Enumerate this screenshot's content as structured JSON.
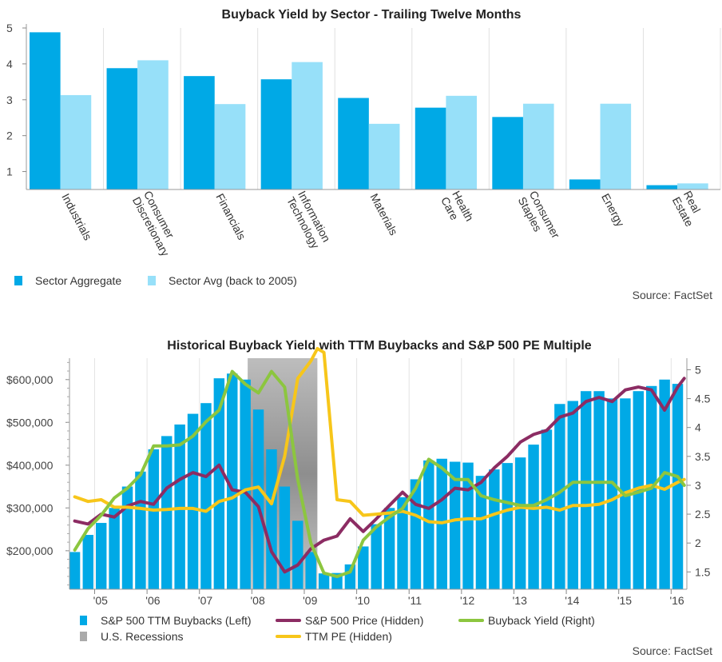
{
  "chart_data": [
    {
      "type": "bar",
      "title": "Buyback Yield by Sector - Trailing Twelve Months",
      "categories": [
        "Industrials",
        "Consumer Discretionary",
        "Financials",
        "Information Technology",
        "Materials",
        "Health Care",
        "Consumer Staples",
        "Energy",
        "Real Estate"
      ],
      "series": [
        {
          "name": "Sector Aggregate",
          "color": "#00a9e6",
          "values": [
            4.88,
            3.88,
            3.66,
            3.57,
            3.05,
            2.78,
            2.52,
            0.78,
            0.62
          ]
        },
        {
          "name": "Sector Avg (back to 2005)",
          "color": "#97e0f9",
          "values": [
            3.13,
            4.1,
            2.88,
            4.05,
            2.33,
            3.11,
            2.89,
            2.89,
            0.67
          ]
        }
      ],
      "yticks": [
        "1",
        "2",
        "3",
        "4",
        "5"
      ],
      "ylim": [
        0.5,
        5
      ],
      "legend_position": "bottom-left",
      "source": "Source: FactSet"
    },
    {
      "type": "bar-line",
      "title": "Historical Buyback Yield with TTM Buybacks and S&P 500 PE Multiple",
      "xticks": [
        "'05",
        "'06",
        "'07",
        "'08",
        "'09",
        "'10",
        "'11",
        "'12",
        "'13",
        "'14",
        "'15",
        "'16"
      ],
      "yticks_left": [
        "$200,000",
        "$300,000",
        "$400,000",
        "$500,000",
        "$600,000"
      ],
      "yticks_right": [
        "1.5",
        "2",
        "2.5",
        "3",
        "3.5",
        "4",
        "4.5",
        "5"
      ],
      "ylim_left": [
        110000,
        650000
      ],
      "ylim_right": [
        1.2,
        5.2
      ],
      "xlim": [
        2004.52,
        2016.3
      ],
      "recession": {
        "start": 2007.92,
        "end": 2009.25,
        "color": "#aaaaaa"
      },
      "bars": {
        "name": "S&P 500 TTM Buybacks (Left)",
        "color": "#00a9e6",
        "x": [
          2004.62,
          2004.875,
          2005.125,
          2005.375,
          2005.625,
          2005.875,
          2006.125,
          2006.375,
          2006.625,
          2006.875,
          2007.125,
          2007.375,
          2007.625,
          2007.875,
          2008.125,
          2008.375,
          2008.625,
          2008.875,
          2009.125,
          2009.375,
          2009.625,
          2009.875,
          2010.125,
          2010.375,
          2010.625,
          2010.875,
          2011.125,
          2011.375,
          2011.625,
          2011.875,
          2012.125,
          2012.375,
          2012.625,
          2012.875,
          2013.125,
          2013.375,
          2013.625,
          2013.875,
          2014.125,
          2014.375,
          2014.625,
          2014.875,
          2015.125,
          2015.375,
          2015.625,
          2015.875,
          2016.125
        ],
        "values": [
          197000,
          237000,
          265000,
          300000,
          350000,
          385000,
          437000,
          468000,
          495000,
          520000,
          545000,
          603000,
          614000,
          600000,
          530000,
          437000,
          350000,
          270000,
          197000,
          147000,
          148000,
          168000,
          210000,
          262000,
          300000,
          325000,
          367000,
          411000,
          415000,
          408000,
          406000,
          375000,
          390000,
          405000,
          418000,
          448000,
          483000,
          543000,
          550000,
          573000,
          573000,
          556000,
          556000,
          573000,
          585000,
          600000,
          590000
        ]
      },
      "lines": [
        {
          "name": "S&P 500 Price (Hidden)",
          "color": "#8c2c63",
          "x": [
            2004.62,
            2004.875,
            2005.125,
            2005.375,
            2005.625,
            2005.875,
            2006.125,
            2006.375,
            2006.625,
            2006.875,
            2007.125,
            2007.375,
            2007.625,
            2007.875,
            2008.125,
            2008.375,
            2008.625,
            2008.875,
            2009.125,
            2009.375,
            2009.625,
            2009.875,
            2010.125,
            2010.375,
            2010.625,
            2010.875,
            2011.125,
            2011.375,
            2011.625,
            2011.875,
            2012.125,
            2012.375,
            2012.625,
            2012.875,
            2013.125,
            2013.375,
            2013.625,
            2013.875,
            2014.125,
            2014.375,
            2014.625,
            2014.875,
            2015.125,
            2015.375,
            2015.625,
            2015.875,
            2016.125,
            2016.25
          ],
          "values": [
            2.38,
            2.33,
            2.5,
            2.45,
            2.64,
            2.72,
            2.67,
            2.95,
            3.1,
            3.22,
            3.15,
            3.35,
            2.92,
            2.88,
            2.63,
            1.85,
            1.5,
            1.62,
            1.9,
            2.05,
            2.12,
            2.42,
            2.2,
            2.42,
            2.65,
            2.88,
            2.67,
            2.6,
            2.75,
            2.95,
            2.92,
            3.05,
            3.3,
            3.5,
            3.75,
            3.88,
            3.95,
            4.18,
            4.25,
            4.45,
            4.52,
            4.45,
            4.65,
            4.7,
            4.65,
            4.3,
            4.7,
            4.85
          ]
        },
        {
          "name": "TTM PE (Hidden)",
          "color": "#f7c61a",
          "x": [
            2004.62,
            2004.875,
            2005.125,
            2005.375,
            2005.625,
            2005.875,
            2006.125,
            2006.375,
            2006.625,
            2006.875,
            2007.125,
            2007.375,
            2007.625,
            2007.875,
            2008.125,
            2008.375,
            2008.625,
            2008.875,
            2009.125,
            2009.25,
            2009.375,
            2009.625,
            2009.875,
            2010.125,
            2010.375,
            2010.625,
            2010.875,
            2011.125,
            2011.375,
            2011.625,
            2011.875,
            2012.125,
            2012.375,
            2012.625,
            2012.875,
            2013.125,
            2013.375,
            2013.625,
            2013.875,
            2014.125,
            2014.375,
            2014.625,
            2014.875,
            2015.125,
            2015.375,
            2015.625,
            2015.875,
            2016.125,
            2016.25
          ],
          "values": [
            2.8,
            2.72,
            2.75,
            2.62,
            2.62,
            2.6,
            2.57,
            2.58,
            2.6,
            2.6,
            2.55,
            2.72,
            2.78,
            2.92,
            2.97,
            2.68,
            3.5,
            4.85,
            5.15,
            5.4,
            5.3,
            2.75,
            2.72,
            2.48,
            2.5,
            2.52,
            2.55,
            2.48,
            2.37,
            2.35,
            2.4,
            2.42,
            2.42,
            2.5,
            2.57,
            2.62,
            2.6,
            2.62,
            2.57,
            2.65,
            2.65,
            2.67,
            2.75,
            2.87,
            2.95,
            3.0,
            2.93,
            3.05,
            3.1
          ]
        },
        {
          "name": "Buyback Yield (Right)",
          "color": "#8cc63f",
          "x": [
            2004.62,
            2004.875,
            2005.125,
            2005.375,
            2005.625,
            2005.875,
            2006.125,
            2006.375,
            2006.625,
            2006.875,
            2007.125,
            2007.375,
            2007.625,
            2007.875,
            2008.125,
            2008.375,
            2008.625,
            2008.875,
            2009.125,
            2009.375,
            2009.625,
            2009.875,
            2010.125,
            2010.375,
            2010.625,
            2010.875,
            2011.125,
            2011.375,
            2011.625,
            2011.875,
            2012.125,
            2012.375,
            2012.625,
            2012.875,
            2013.125,
            2013.375,
            2013.625,
            2013.875,
            2014.125,
            2014.375,
            2014.625,
            2014.875,
            2015.125,
            2015.375,
            2015.625,
            2015.875,
            2016.125,
            2016.25
          ],
          "values": [
            1.88,
            2.25,
            2.48,
            2.78,
            2.95,
            3.18,
            3.68,
            3.68,
            3.7,
            3.85,
            4.1,
            4.3,
            4.97,
            4.75,
            4.6,
            4.97,
            4.7,
            3.1,
            2.0,
            1.48,
            1.42,
            1.5,
            2.05,
            2.28,
            2.45,
            2.6,
            2.95,
            3.45,
            3.3,
            3.1,
            3.1,
            2.82,
            2.75,
            2.7,
            2.65,
            2.65,
            2.75,
            2.88,
            3.05,
            3.05,
            3.05,
            3.05,
            2.82,
            2.88,
            2.95,
            3.22,
            3.15,
            3.0
          ]
        }
      ],
      "legend": [
        {
          "label": "S&P 500 TTM Buybacks (Left)",
          "type": "bar",
          "color": "#00a9e6"
        },
        {
          "label": "S&P 500 Price (Hidden)",
          "type": "line",
          "color": "#8c2c63"
        },
        {
          "label": "Buyback Yield (Right)",
          "type": "line",
          "color": "#8cc63f"
        },
        {
          "label": "U.S. Recessions",
          "type": "bar",
          "color": "#aaaaaa"
        },
        {
          "label": "TTM PE (Hidden)",
          "type": "line",
          "color": "#f7c61a"
        }
      ],
      "legend_position": "bottom",
      "source": "Source: FactSet"
    }
  ]
}
